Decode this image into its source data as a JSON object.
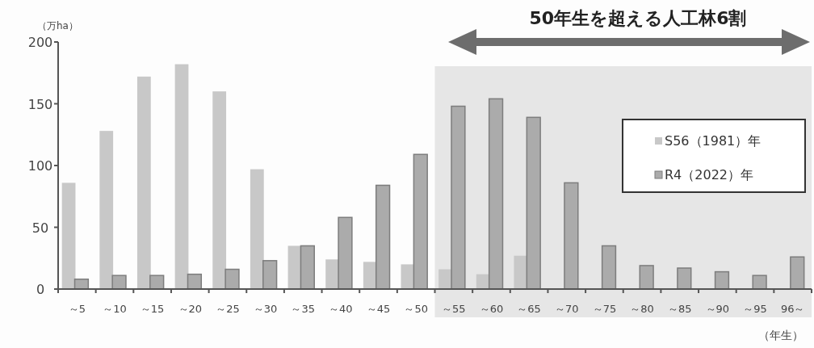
{
  "chart_data": {
    "type": "bar",
    "title": "50年生を超える人工林6割",
    "ylabel": "（万ha）",
    "xlabel": "（年生）",
    "categories": [
      "～5",
      "～10",
      "～15",
      "～20",
      "～25",
      "～30",
      "～35",
      "～40",
      "～45",
      "～50",
      "～55",
      "～60",
      "～65",
      "～70",
      "～75",
      "～80",
      "～85",
      "～90",
      "～95",
      "96～"
    ],
    "series": [
      {
        "name": "S56（1981）年",
        "color": "#c8c8c8",
        "values": [
          86,
          128,
          172,
          182,
          160,
          97,
          35,
          24,
          22,
          20,
          16,
          12,
          27,
          null,
          null,
          null,
          null,
          null,
          null,
          null
        ]
      },
      {
        "name": "R4（2022）年",
        "color": "#ababab",
        "values": [
          8,
          11,
          11,
          12,
          16,
          23,
          35,
          58,
          84,
          109,
          148,
          154,
          139,
          86,
          35,
          19,
          17,
          14,
          11,
          26
        ]
      }
    ],
    "ylim": [
      0,
      200
    ],
    "yticks": [
      0,
      50,
      100,
      150,
      200
    ],
    "bands": [
      {
        "axis": "x",
        "from": "～55",
        "to": "96～",
        "color": "#e6e6e6"
      }
    ],
    "legend": "top right",
    "grid": false
  }
}
